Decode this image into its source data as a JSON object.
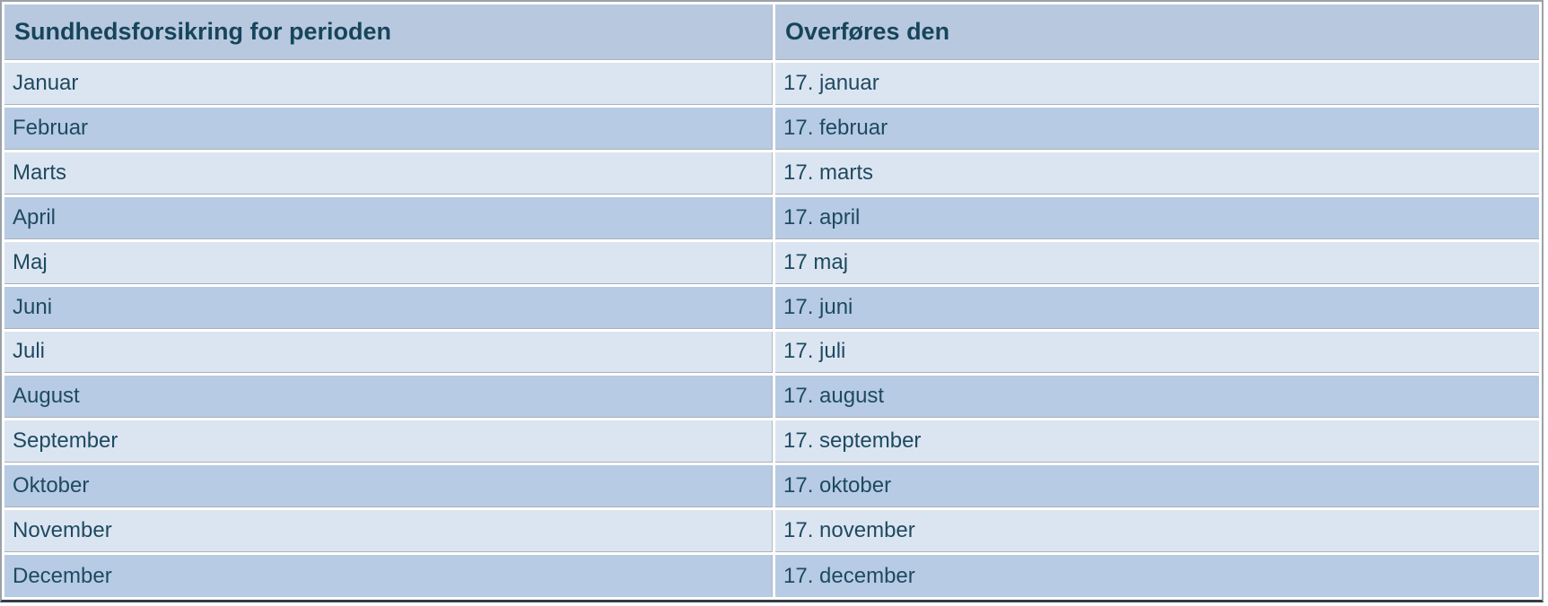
{
  "table": {
    "columns": [
      {
        "label": "Sundhedsforsikring for perioden"
      },
      {
        "label": "Overføres den"
      }
    ],
    "rows": [
      {
        "period": "Januar",
        "transfer": "17. januar"
      },
      {
        "period": "Februar",
        "transfer": "17. februar"
      },
      {
        "period": "Marts",
        "transfer": "17. marts"
      },
      {
        "period": "April",
        "transfer": "17. april"
      },
      {
        "period": "Maj",
        "transfer": "17 maj"
      },
      {
        "period": "Juni",
        "transfer": "17. juni"
      },
      {
        "period": "Juli",
        "transfer": "17. juli"
      },
      {
        "period": "August",
        "transfer": "17. august"
      },
      {
        "period": "September",
        "transfer": "17. september"
      },
      {
        "period": "Oktober",
        "transfer": "17. oktober"
      },
      {
        "period": "November",
        "transfer": "17. november"
      },
      {
        "period": "December",
        "transfer": "17. december"
      }
    ]
  },
  "colors": {
    "header_bg": "#b8c9df",
    "row_light_bg": "#dbe5f1",
    "row_dark_bg": "#b7cbe4",
    "header_text": "#16455c",
    "body_text": "#1e4a61",
    "outer_border": "#9ba1a8",
    "bottom_edge": "#383c44"
  }
}
